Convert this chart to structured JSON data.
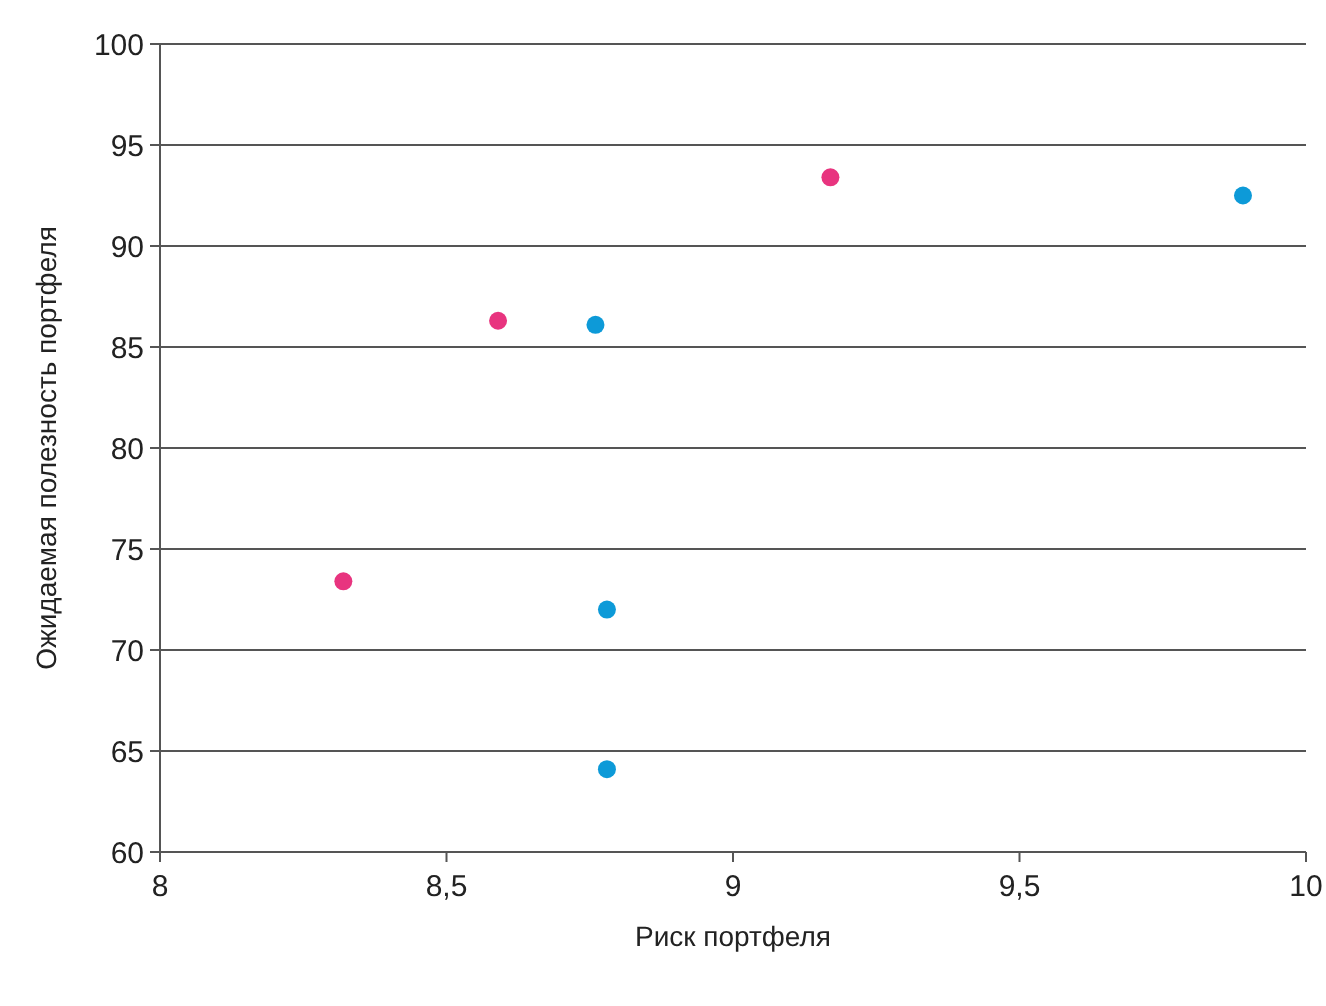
{
  "chart_data": {
    "type": "scatter",
    "xlabel": "Риск портфеля",
    "ylabel": "Ожидаемая полезность портфеля",
    "xlim": [
      8,
      10
    ],
    "xticks": [
      8,
      {
        "value": 8.5,
        "label": "8,5"
      },
      9,
      {
        "value": 9.5,
        "label": "9,5"
      },
      10
    ],
    "ylim": [
      60,
      100
    ],
    "yticks": [
      60,
      65,
      70,
      75,
      80,
      85,
      90,
      95,
      100
    ],
    "grid": "y",
    "marker": "circle",
    "series": [
      {
        "color": "#e8347f",
        "x": [
          8.32,
          8.59,
          9.17
        ],
        "values": [
          73.4,
          86.3,
          93.4
        ]
      },
      {
        "color": "#0d9ad8",
        "x": [
          8.76,
          8.78,
          8.78,
          9.89
        ],
        "values": [
          86.1,
          72.0,
          64.1,
          92.5
        ]
      }
    ]
  }
}
